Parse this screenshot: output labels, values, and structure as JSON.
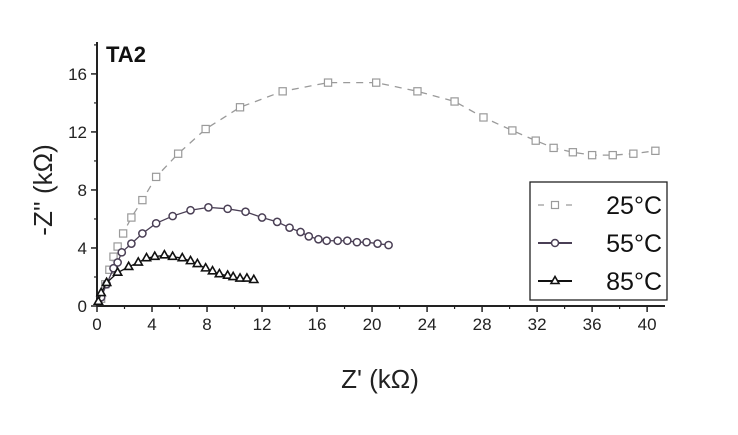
{
  "chart_data": {
    "type": "scatter",
    "title": "",
    "panel_label": "TA2",
    "xlabel": "Z' (kΩ)",
    "ylabel": "-Z'' (kΩ)",
    "xlim": [
      0,
      41.3
    ],
    "ylim": [
      0,
      18.2
    ],
    "xticks": [
      0,
      4,
      8,
      12,
      16,
      20,
      24,
      28,
      32,
      36,
      40
    ],
    "yticks": [
      0,
      4,
      8,
      12,
      16
    ],
    "grid": false,
    "legend_position": "right",
    "series": [
      {
        "name": "25°C",
        "marker": "square",
        "line": "dashed",
        "color": "#9a9a9a",
        "x": [
          0.3,
          0.6,
          0.9,
          1.2,
          1.5,
          1.9,
          2.5,
          3.3,
          4.3,
          5.9,
          7.9,
          10.4,
          13.5,
          16.8,
          20.3,
          23.3,
          26.0,
          28.1,
          30.2,
          31.9,
          33.2,
          34.6,
          36.0,
          37.5,
          39.0,
          40.6
        ],
        "y": [
          0.5,
          1.5,
          2.5,
          3.4,
          4.1,
          5.0,
          6.1,
          7.3,
          8.9,
          10.5,
          12.2,
          13.7,
          14.8,
          15.4,
          15.4,
          14.8,
          14.1,
          13.0,
          12.1,
          11.4,
          10.9,
          10.6,
          10.4,
          10.4,
          10.5,
          10.7
        ]
      },
      {
        "name": "55°C",
        "marker": "circle",
        "line": "solid",
        "color": "#4a3f55",
        "x": [
          0.3,
          0.7,
          1.2,
          1.5,
          1.8,
          2.5,
          3.3,
          4.3,
          5.5,
          6.8,
          8.1,
          9.5,
          10.8,
          12.0,
          13.1,
          14.0,
          14.8,
          15.4,
          16.1,
          16.7,
          17.5,
          18.2,
          18.9,
          19.6,
          20.4,
          21.2
        ],
        "y": [
          0.6,
          1.5,
          2.6,
          3.0,
          3.7,
          4.3,
          5.0,
          5.7,
          6.2,
          6.6,
          6.8,
          6.7,
          6.5,
          6.1,
          5.8,
          5.4,
          5.1,
          4.8,
          4.6,
          4.5,
          4.5,
          4.5,
          4.4,
          4.4,
          4.3,
          4.2
        ]
      },
      {
        "name": "85°C",
        "marker": "triangle",
        "line": "solid",
        "color": "#111111",
        "x": [
          0.1,
          0.3,
          0.7,
          1.5,
          2.3,
          3.0,
          3.6,
          4.2,
          4.9,
          5.5,
          6.2,
          6.8,
          7.3,
          7.9,
          8.4,
          8.9,
          9.5,
          9.9,
          10.4,
          10.9,
          11.4
        ],
        "y": [
          0.3,
          0.9,
          1.6,
          2.3,
          2.7,
          3.0,
          3.3,
          3.4,
          3.5,
          3.4,
          3.3,
          3.1,
          2.9,
          2.6,
          2.4,
          2.2,
          2.1,
          2.0,
          1.9,
          1.9,
          1.8
        ]
      }
    ]
  }
}
